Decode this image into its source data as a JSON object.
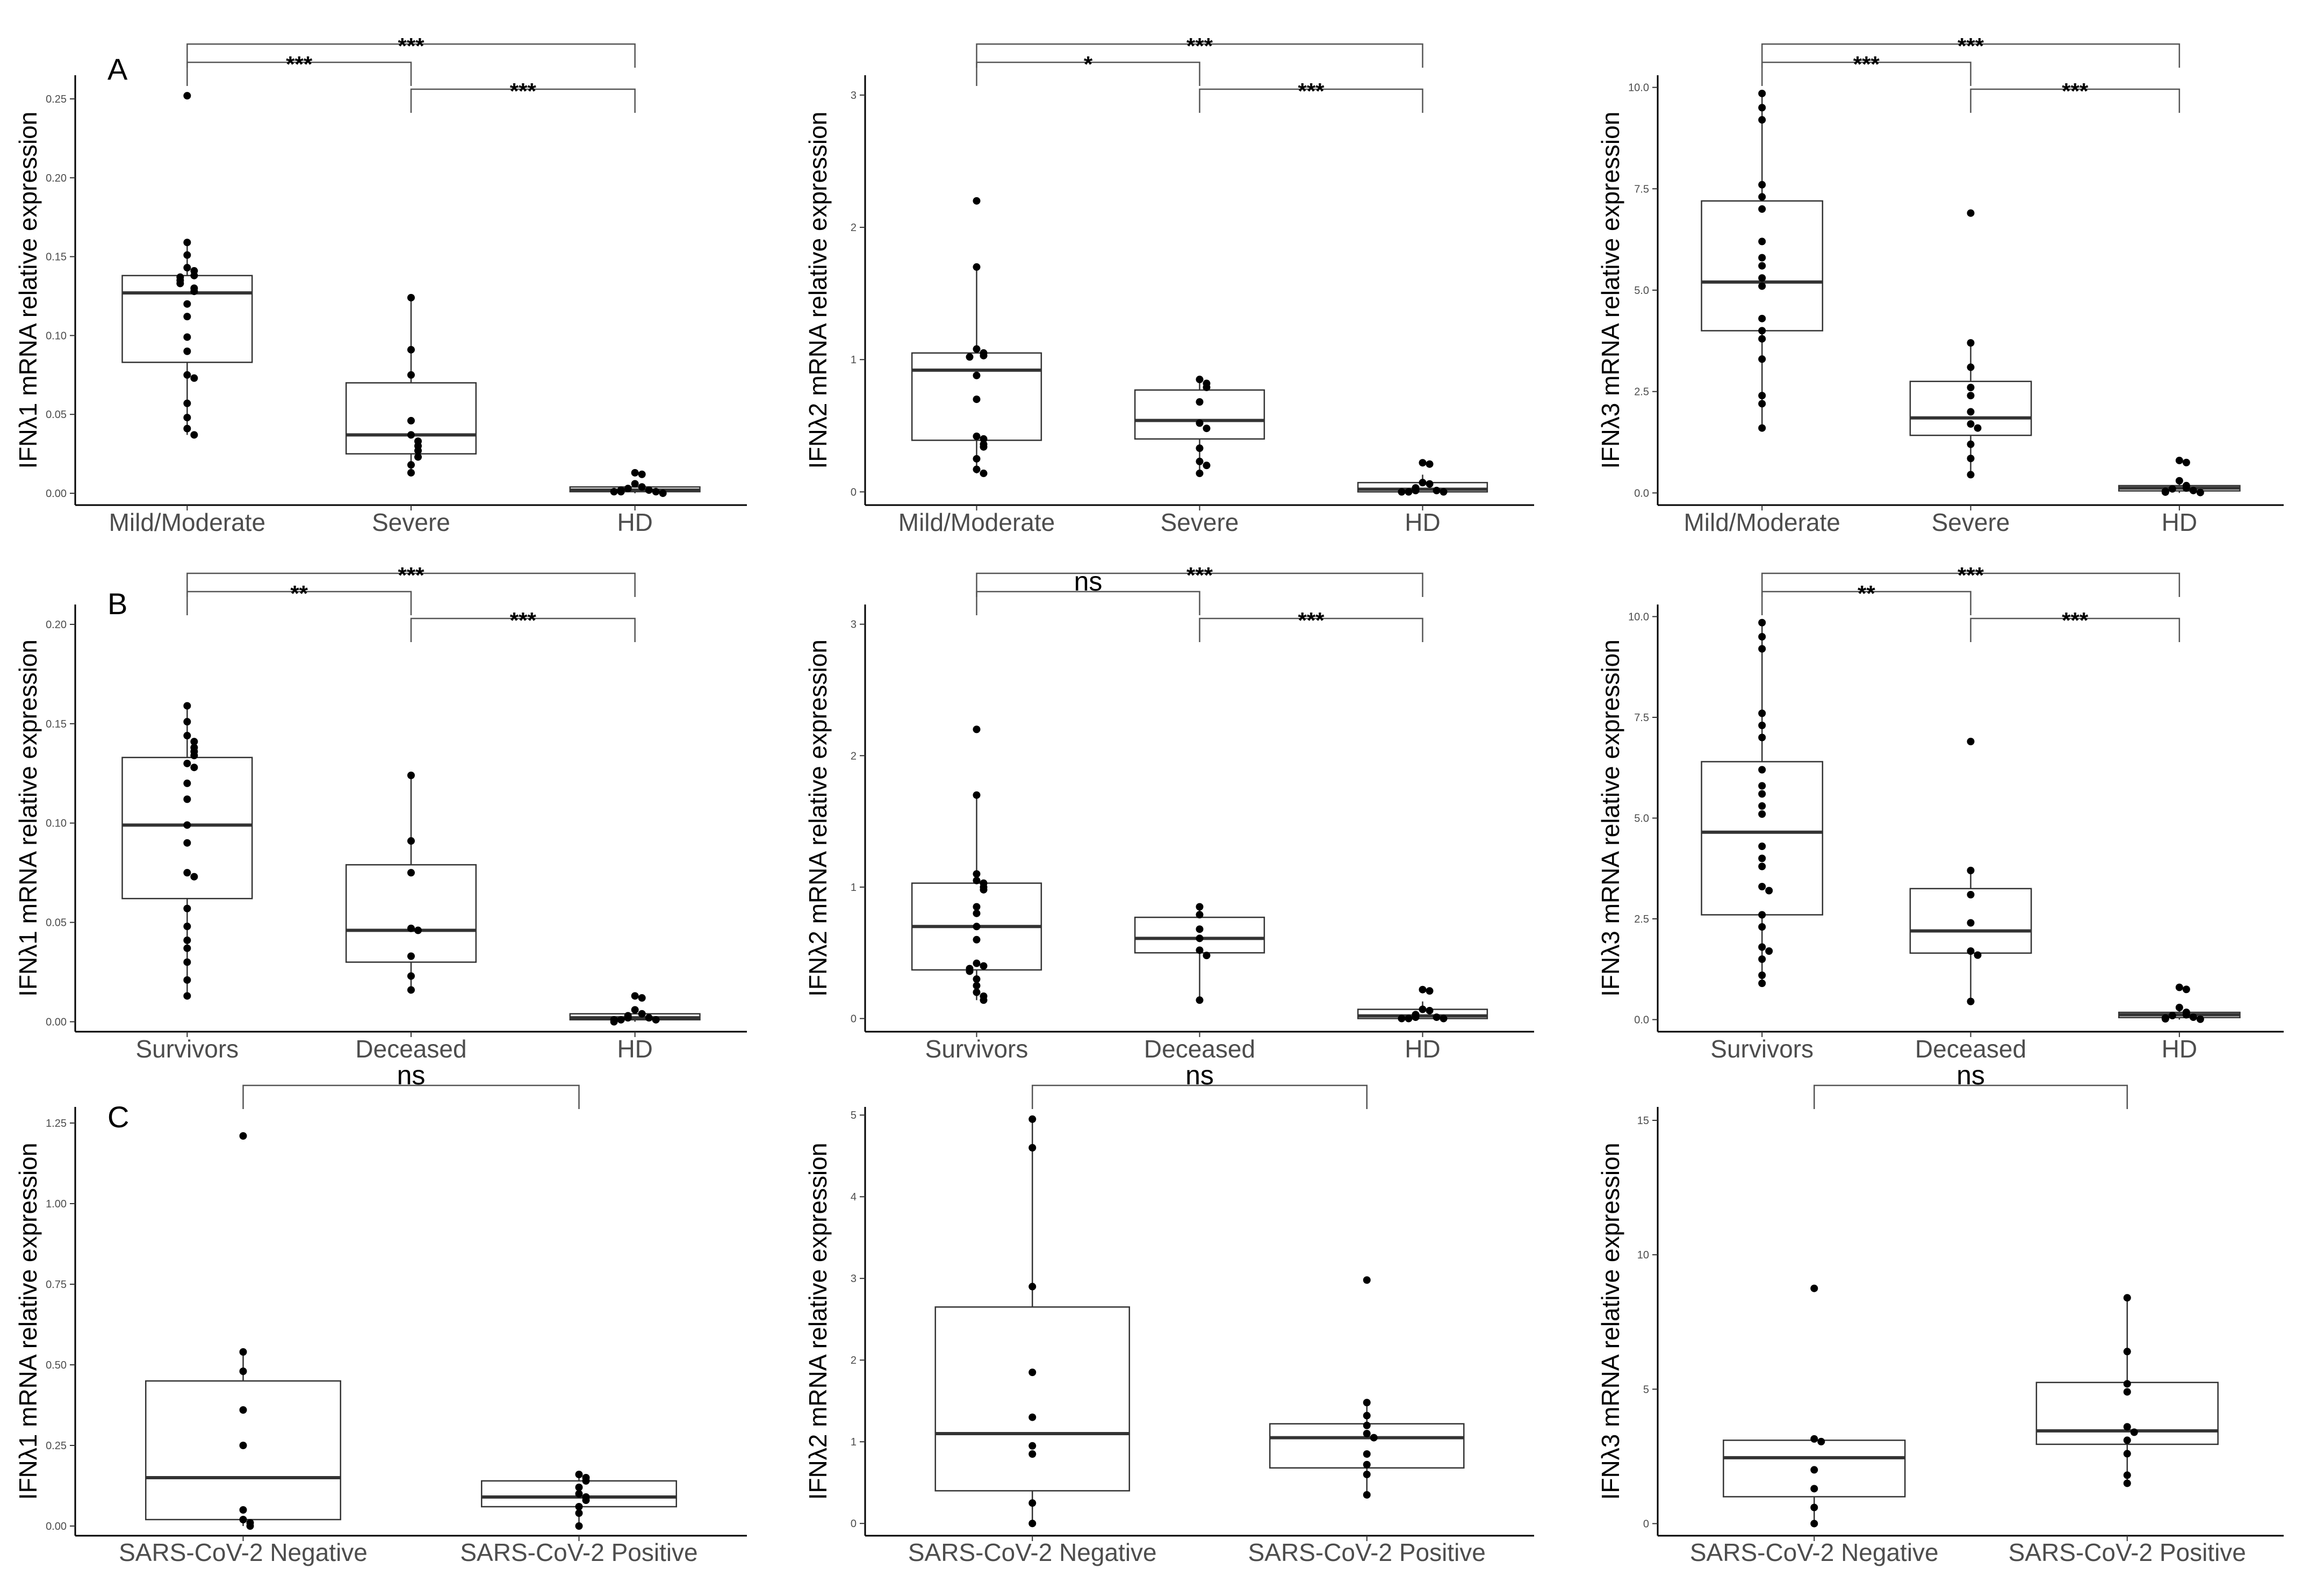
{
  "chart_data": [
    {
      "type": "box",
      "panel": "A",
      "row": 0,
      "col": 0,
      "ylabel": "IFNλ1 mRNA relative expression",
      "ylim": [
        -0.0075,
        0.265
      ],
      "yticks": [
        0,
        0.05,
        0.1,
        0.15,
        0.2,
        0.25
      ],
      "ytick_labels": [
        "0.00",
        "0.05",
        "0.10",
        "0.15",
        "0.20",
        "0.25"
      ],
      "groups": [
        {
          "label": "Mild/Moderate",
          "q1": 0.083,
          "median": 0.127,
          "q3": 0.138,
          "whisker_low": 0.037,
          "whisker_high": 0.158,
          "points": [
            0.252,
            0.159,
            0.151,
            0.143,
            0.141,
            0.138,
            0.137,
            0.135,
            0.133,
            0.13,
            0.128,
            0.12,
            0.112,
            0.099,
            0.09,
            0.075,
            0.073,
            0.057,
            0.048,
            0.041,
            0.037
          ]
        },
        {
          "label": "Severe",
          "q1": 0.025,
          "median": 0.037,
          "q3": 0.07,
          "whisker_low": 0.012,
          "whisker_high": 0.124,
          "points": [
            0.124,
            0.091,
            0.075,
            0.046,
            0.037,
            0.033,
            0.03,
            0.027,
            0.023,
            0.018,
            0.013
          ]
        },
        {
          "label": "HD",
          "q1": 0.001,
          "median": 0.002,
          "q3": 0.004,
          "whisker_low": 0.0,
          "whisker_high": 0.006,
          "points": [
            0.013,
            0.012,
            0.006,
            0.004,
            0.003,
            0.002,
            0.002,
            0.001,
            0.001,
            0.001,
            0.0
          ]
        }
      ],
      "comparisons": [
        {
          "pair": [
            1,
            3
          ],
          "label": "***"
        },
        {
          "pair": [
            1,
            2
          ],
          "label": "***"
        },
        {
          "pair": [
            2,
            3
          ],
          "label": "***"
        }
      ]
    },
    {
      "type": "box",
      "panel": "",
      "row": 0,
      "col": 1,
      "ylabel": "IFNλ2 mRNA relative expression",
      "ylim": [
        -0.1,
        3.15
      ],
      "yticks": [
        0,
        1,
        2,
        3
      ],
      "ytick_labels": [
        "0",
        "1",
        "2",
        "3"
      ],
      "groups": [
        {
          "label": "Mild/Moderate",
          "q1": 0.39,
          "median": 0.92,
          "q3": 1.05,
          "whisker_low": 0.14,
          "whisker_high": 1.7,
          "points": [
            2.2,
            1.7,
            1.08,
            1.05,
            1.03,
            1.02,
            0.88,
            0.7,
            0.42,
            0.4,
            0.36,
            0.34,
            0.25,
            0.17,
            0.14
          ]
        },
        {
          "label": "Severe",
          "q1": 0.4,
          "median": 0.54,
          "q3": 0.77,
          "whisker_low": 0.14,
          "whisker_high": 0.85,
          "points": [
            0.85,
            0.82,
            0.79,
            0.68,
            0.52,
            0.48,
            0.33,
            0.23,
            0.2,
            0.14
          ]
        },
        {
          "label": "HD",
          "q1": 0.0,
          "median": 0.02,
          "q3": 0.07,
          "whisker_low": 0.0,
          "whisker_high": 0.13,
          "points": [
            0.22,
            0.21,
            0.07,
            0.06,
            0.03,
            0.02,
            0.01,
            0.01,
            0.0,
            0.0,
            0.0
          ]
        }
      ],
      "comparisons": [
        {
          "pair": [
            1,
            3
          ],
          "label": "***"
        },
        {
          "pair": [
            1,
            2
          ],
          "label": "*"
        },
        {
          "pair": [
            2,
            3
          ],
          "label": "***"
        }
      ]
    },
    {
      "type": "box",
      "panel": "",
      "row": 0,
      "col": 2,
      "ylabel": "IFNλ3 mRNA relative expression",
      "ylim": [
        -0.3,
        10.3
      ],
      "yticks": [
        0,
        2.5,
        5,
        7.5,
        10
      ],
      "ytick_labels": [
        "0.0",
        "2.5",
        "5.0",
        "7.5",
        "10.0"
      ],
      "groups": [
        {
          "label": "Mild/Moderate",
          "q1": 4.0,
          "median": 5.2,
          "q3": 7.2,
          "whisker_low": 1.6,
          "whisker_high": 9.85,
          "points": [
            9.85,
            9.5,
            9.2,
            7.6,
            7.3,
            7.0,
            6.2,
            5.8,
            5.6,
            5.3,
            5.1,
            4.3,
            4.0,
            3.8,
            3.3,
            2.4,
            2.2,
            1.6
          ]
        },
        {
          "label": "Severe",
          "q1": 1.42,
          "median": 1.85,
          "q3": 2.75,
          "whisker_low": 0.45,
          "whisker_high": 3.7,
          "points": [
            6.9,
            3.7,
            3.1,
            2.6,
            2.4,
            2.0,
            1.7,
            1.6,
            1.2,
            0.85,
            0.45
          ]
        },
        {
          "label": "HD",
          "q1": 0.05,
          "median": 0.12,
          "q3": 0.18,
          "whisker_low": 0.0,
          "whisker_high": 0.3,
          "points": [
            0.8,
            0.75,
            0.3,
            0.18,
            0.12,
            0.1,
            0.06,
            0.04,
            0.02,
            0.01
          ]
        }
      ],
      "comparisons": [
        {
          "pair": [
            1,
            3
          ],
          "label": "***"
        },
        {
          "pair": [
            1,
            2
          ],
          "label": "***"
        },
        {
          "pair": [
            2,
            3
          ],
          "label": "***"
        }
      ]
    },
    {
      "type": "box",
      "panel": "B",
      "row": 1,
      "col": 0,
      "ylabel": "IFNλ1 mRNA relative expression",
      "ylim": [
        -0.005,
        0.21
      ],
      "yticks": [
        0,
        0.05,
        0.1,
        0.15,
        0.2
      ],
      "ytick_labels": [
        "0.00",
        "0.05",
        "0.10",
        "0.15",
        "0.20"
      ],
      "groups": [
        {
          "label": "Survivors",
          "q1": 0.062,
          "median": 0.099,
          "q3": 0.133,
          "whisker_low": 0.013,
          "whisker_high": 0.158,
          "points": [
            0.159,
            0.151,
            0.144,
            0.141,
            0.138,
            0.136,
            0.134,
            0.13,
            0.128,
            0.12,
            0.112,
            0.099,
            0.09,
            0.075,
            0.073,
            0.057,
            0.048,
            0.041,
            0.037,
            0.03,
            0.021,
            0.013
          ]
        },
        {
          "label": "Deceased",
          "q1": 0.03,
          "median": 0.046,
          "q3": 0.079,
          "whisker_low": 0.016,
          "whisker_high": 0.124,
          "points": [
            0.124,
            0.091,
            0.075,
            0.047,
            0.046,
            0.033,
            0.023,
            0.016
          ]
        },
        {
          "label": "HD",
          "q1": 0.001,
          "median": 0.002,
          "q3": 0.004,
          "whisker_low": 0.0,
          "whisker_high": 0.006,
          "points": [
            0.013,
            0.012,
            0.006,
            0.004,
            0.003,
            0.002,
            0.002,
            0.001,
            0.001,
            0.001,
            0.0
          ]
        }
      ],
      "comparisons": [
        {
          "pair": [
            1,
            3
          ],
          "label": "***"
        },
        {
          "pair": [
            1,
            2
          ],
          "label": "**"
        },
        {
          "pair": [
            2,
            3
          ],
          "label": "***"
        }
      ]
    },
    {
      "type": "box",
      "panel": "",
      "row": 1,
      "col": 1,
      "ylabel": "IFNλ2 mRNA relative expression",
      "ylim": [
        -0.1,
        3.15
      ],
      "yticks": [
        0,
        1,
        2,
        3
      ],
      "ytick_labels": [
        "0",
        "1",
        "2",
        "3"
      ],
      "groups": [
        {
          "label": "Survivors",
          "q1": 0.37,
          "median": 0.7,
          "q3": 1.03,
          "whisker_low": 0.14,
          "whisker_high": 1.7,
          "points": [
            2.2,
            1.7,
            1.1,
            1.05,
            1.03,
            1.0,
            0.98,
            0.85,
            0.8,
            0.7,
            0.6,
            0.42,
            0.4,
            0.38,
            0.36,
            0.3,
            0.25,
            0.2,
            0.17,
            0.14
          ]
        },
        {
          "label": "Deceased",
          "q1": 0.5,
          "median": 0.61,
          "q3": 0.77,
          "whisker_low": 0.14,
          "whisker_high": 0.85,
          "points": [
            0.85,
            0.79,
            0.68,
            0.61,
            0.52,
            0.48,
            0.14
          ]
        },
        {
          "label": "HD",
          "q1": 0.0,
          "median": 0.02,
          "q3": 0.07,
          "whisker_low": 0.0,
          "whisker_high": 0.13,
          "points": [
            0.22,
            0.21,
            0.07,
            0.06,
            0.03,
            0.02,
            0.01,
            0.01,
            0.0,
            0.0,
            0.0
          ]
        }
      ],
      "comparisons": [
        {
          "pair": [
            1,
            3
          ],
          "label": "***"
        },
        {
          "pair": [
            1,
            2
          ],
          "label": "ns"
        },
        {
          "pair": [
            2,
            3
          ],
          "label": "***"
        }
      ]
    },
    {
      "type": "box",
      "panel": "",
      "row": 1,
      "col": 2,
      "ylabel": "IFNλ3 mRNA relative expression",
      "ylim": [
        -0.3,
        10.3
      ],
      "yticks": [
        0,
        2.5,
        5,
        7.5,
        10
      ],
      "ytick_labels": [
        "0.0",
        "2.5",
        "5.0",
        "7.5",
        "10.0"
      ],
      "groups": [
        {
          "label": "Survivors",
          "q1": 2.6,
          "median": 4.65,
          "q3": 6.4,
          "whisker_low": 0.9,
          "whisker_high": 9.85,
          "points": [
            9.85,
            9.5,
            9.2,
            7.6,
            7.3,
            7.0,
            6.2,
            5.8,
            5.6,
            5.3,
            5.1,
            4.3,
            4.0,
            3.8,
            3.3,
            3.2,
            2.6,
            2.3,
            1.8,
            1.7,
            1.5,
            1.1,
            0.9
          ]
        },
        {
          "label": "Deceased",
          "q1": 1.65,
          "median": 2.2,
          "q3": 3.25,
          "whisker_low": 0.45,
          "whisker_high": 3.7,
          "points": [
            6.9,
            3.7,
            3.1,
            2.4,
            1.7,
            1.6,
            0.45
          ]
        },
        {
          "label": "HD",
          "q1": 0.05,
          "median": 0.12,
          "q3": 0.18,
          "whisker_low": 0.0,
          "whisker_high": 0.3,
          "points": [
            0.8,
            0.75,
            0.3,
            0.18,
            0.12,
            0.1,
            0.06,
            0.04,
            0.02,
            0.01
          ]
        }
      ],
      "comparisons": [
        {
          "pair": [
            1,
            3
          ],
          "label": "***"
        },
        {
          "pair": [
            1,
            2
          ],
          "label": "**"
        },
        {
          "pair": [
            2,
            3
          ],
          "label": "***"
        }
      ]
    },
    {
      "type": "box",
      "panel": "C",
      "row": 2,
      "col": 0,
      "ylabel": "IFNλ1 mRNA relative expression",
      "ylim": [
        -0.03,
        1.3
      ],
      "yticks": [
        0,
        0.25,
        0.5,
        0.75,
        1,
        1.25
      ],
      "ytick_labels": [
        "0.00",
        "0.25",
        "0.50",
        "0.75",
        "1.00",
        "1.25"
      ],
      "groups": [
        {
          "label": "SARS-CoV-2 Negative",
          "q1": 0.02,
          "median": 0.15,
          "q3": 0.45,
          "whisker_low": 0.0,
          "whisker_high": 0.54,
          "points": [
            1.21,
            0.54,
            0.48,
            0.36,
            0.25,
            0.05,
            0.02,
            0.01,
            0.0
          ]
        },
        {
          "label": "SARS-CoV-2 Positive",
          "q1": 0.06,
          "median": 0.09,
          "q3": 0.14,
          "whisker_low": 0.0,
          "whisker_high": 0.16,
          "points": [
            0.16,
            0.15,
            0.14,
            0.12,
            0.1,
            0.09,
            0.08,
            0.06,
            0.04,
            0.0
          ]
        }
      ],
      "comparisons": [
        {
          "pair": [
            1,
            2
          ],
          "label": "ns"
        }
      ]
    },
    {
      "type": "box",
      "panel": "",
      "row": 2,
      "col": 1,
      "ylabel": "IFNλ2 mRNA relative expression",
      "ylim": [
        -0.15,
        5.1
      ],
      "yticks": [
        0,
        1,
        2,
        3,
        4,
        5
      ],
      "ytick_labels": [
        "0",
        "1",
        "2",
        "3",
        "4",
        "5"
      ],
      "groups": [
        {
          "label": "SARS-CoV-2 Negative",
          "q1": 0.4,
          "median": 1.1,
          "q3": 2.65,
          "whisker_low": 0.0,
          "whisker_high": 4.95,
          "points": [
            4.95,
            4.6,
            2.9,
            1.85,
            1.3,
            0.95,
            0.85,
            0.25,
            0.0
          ]
        },
        {
          "label": "SARS-CoV-2 Positive",
          "q1": 0.68,
          "median": 1.05,
          "q3": 1.22,
          "whisker_low": 0.35,
          "whisker_high": 1.48,
          "points": [
            2.98,
            1.48,
            1.32,
            1.2,
            1.1,
            1.05,
            0.85,
            0.72,
            0.6,
            0.35
          ]
        }
      ],
      "comparisons": [
        {
          "pair": [
            1,
            2
          ],
          "label": "ns"
        }
      ]
    },
    {
      "type": "box",
      "panel": "",
      "row": 2,
      "col": 2,
      "ylabel": "IFNλ3 mRNA relative expression",
      "ylim": [
        -0.45,
        15.5
      ],
      "yticks": [
        0,
        5,
        10,
        15
      ],
      "ytick_labels": [
        "0",
        "5",
        "10",
        "15"
      ],
      "groups": [
        {
          "label": "SARS-CoV-2 Negative",
          "q1": 1.0,
          "median": 2.45,
          "q3": 3.1,
          "whisker_low": 0.0,
          "whisker_high": 3.15,
          "points": [
            8.75,
            3.15,
            3.05,
            2.0,
            1.3,
            0.6,
            0.0
          ]
        },
        {
          "label": "SARS-CoV-2 Positive",
          "q1": 2.95,
          "median": 3.45,
          "q3": 5.25,
          "whisker_low": 1.5,
          "whisker_high": 8.4,
          "points": [
            8.4,
            6.4,
            5.2,
            4.9,
            3.6,
            3.4,
            3.1,
            2.6,
            1.8,
            1.5
          ]
        }
      ],
      "comparisons": [
        {
          "pair": [
            1,
            2
          ],
          "label": "ns"
        }
      ]
    }
  ]
}
